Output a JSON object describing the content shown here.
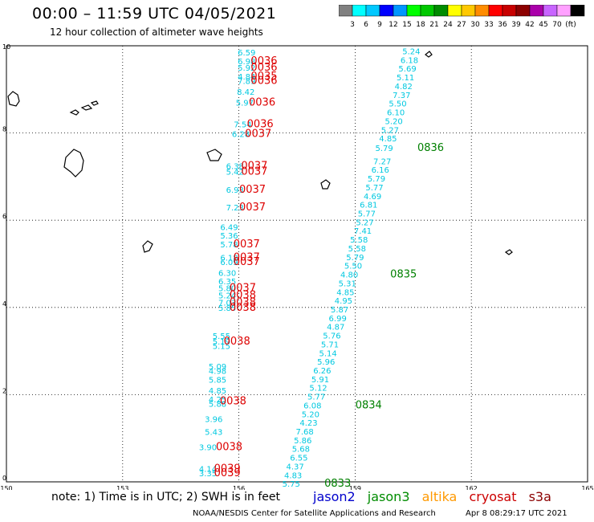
{
  "title": "00:00 – 11:59 UTC 04/05/2021",
  "subtitle": "12 hour collection of altimeter wave heights",
  "legend": {
    "colors": [
      "#808080",
      "#00ffff",
      "#00c8ff",
      "#0000ff",
      "#0096ff",
      "#00ff00",
      "#00c800",
      "#008c00",
      "#ffff00",
      "#ffc800",
      "#ff8c00",
      "#ff0000",
      "#c80000",
      "#8c0000",
      "#aa00aa",
      "#c864ff",
      "#ffa0ff",
      "#000000"
    ],
    "labels": [
      "3",
      "6",
      "9",
      "12",
      "15",
      "18",
      "21",
      "24",
      "27",
      "30",
      "33",
      "36",
      "39",
      "42",
      "45",
      "70",
      "(ft)"
    ]
  },
  "note": "note: 1) Time is in UTC; 2) SWH is in feet",
  "satellites": [
    {
      "name": "jason2",
      "color": "#0000cc"
    },
    {
      "name": "jason3",
      "color": "#008c00"
    },
    {
      "name": "altika",
      "color": "#ff9900"
    },
    {
      "name": "cryosat",
      "color": "#cc0000"
    },
    {
      "name": "s3a",
      "color": "#8b0000"
    }
  ],
  "credit": "NOAA/NESDIS Center for Satellite Applications and Research",
  "credit_time": "Apr  8 08:29:17 UTC 2021",
  "chart_data": {
    "type": "scatter",
    "xlim": [
      150,
      165
    ],
    "ylim": [
      0,
      10
    ],
    "x_ticks": [
      150,
      153,
      156,
      159,
      162,
      165
    ],
    "y_ticks": [
      0,
      2,
      4,
      6,
      8,
      10
    ],
    "grid": true,
    "wave_color": "#00c8e0",
    "time_color_cryosat": "#dd0000",
    "time_color_jason3": "#008000",
    "cryosat_values": [
      {
        "x": 156.2,
        "y": 9.85,
        "v": "6.59"
      },
      {
        "x": 156.2,
        "y": 9.65,
        "v": "6.98"
      },
      {
        "x": 156.2,
        "y": 9.5,
        "v": "5.92"
      },
      {
        "x": 156.2,
        "y": 9.3,
        "v": "4.84"
      },
      {
        "x": 156.2,
        "y": 9.2,
        "v": "7.89"
      },
      {
        "x": 156.18,
        "y": 8.95,
        "v": "8.42"
      },
      {
        "x": 156.15,
        "y": 8.7,
        "v": "5.97"
      },
      {
        "x": 156.1,
        "y": 8.2,
        "v": "7.54"
      },
      {
        "x": 156.05,
        "y": 7.98,
        "v": "6.28"
      },
      {
        "x": 155.9,
        "y": 7.25,
        "v": "6.38"
      },
      {
        "x": 155.9,
        "y": 7.12,
        "v": "5.42"
      },
      {
        "x": 155.9,
        "y": 6.7,
        "v": "6.93"
      },
      {
        "x": 155.9,
        "y": 6.3,
        "v": "7.23"
      },
      {
        "x": 155.75,
        "y": 5.85,
        "v": "6.49"
      },
      {
        "x": 155.75,
        "y": 5.65,
        "v": "5.36"
      },
      {
        "x": 155.75,
        "y": 5.45,
        "v": "5.78"
      },
      {
        "x": 155.75,
        "y": 5.15,
        "v": "6.18"
      },
      {
        "x": 155.75,
        "y": 5.05,
        "v": "6.09"
      },
      {
        "x": 155.7,
        "y": 4.8,
        "v": "6.30"
      },
      {
        "x": 155.7,
        "y": 4.6,
        "v": "6.35"
      },
      {
        "x": 155.7,
        "y": 4.45,
        "v": "5.80"
      },
      {
        "x": 155.7,
        "y": 4.28,
        "v": "5.24"
      },
      {
        "x": 155.7,
        "y": 4.12,
        "v": "7.03"
      },
      {
        "x": 155.7,
        "y": 4.0,
        "v": "5.85"
      },
      {
        "x": 155.55,
        "y": 3.35,
        "v": "5.55"
      },
      {
        "x": 155.55,
        "y": 3.22,
        "v": "5.19"
      },
      {
        "x": 155.55,
        "y": 3.12,
        "v": "5.15"
      },
      {
        "x": 155.45,
        "y": 2.65,
        "v": "5.09"
      },
      {
        "x": 155.45,
        "y": 2.55,
        "v": "4.98"
      },
      {
        "x": 155.45,
        "y": 2.35,
        "v": "5.85"
      },
      {
        "x": 155.45,
        "y": 2.1,
        "v": "4.85"
      },
      {
        "x": 155.45,
        "y": 1.9,
        "v": "4.25"
      },
      {
        "x": 155.45,
        "y": 1.8,
        "v": "5.88"
      },
      {
        "x": 155.35,
        "y": 1.45,
        "v": "3.96"
      },
      {
        "x": 155.35,
        "y": 1.15,
        "v": "5.43"
      },
      {
        "x": 155.2,
        "y": 0.8,
        "v": "3.90"
      },
      {
        "x": 155.2,
        "y": 0.3,
        "v": "4.14"
      },
      {
        "x": 155.2,
        "y": 0.2,
        "v": "3.35"
      }
    ],
    "cryosat_times": [
      {
        "x": 156.65,
        "y": 9.65,
        "v": "0036"
      },
      {
        "x": 156.65,
        "y": 9.5,
        "v": "0036"
      },
      {
        "x": 156.65,
        "y": 9.3,
        "v": "0035"
      },
      {
        "x": 156.65,
        "y": 9.2,
        "v": "0036"
      },
      {
        "x": 156.6,
        "y": 8.7,
        "v": "0036"
      },
      {
        "x": 156.55,
        "y": 8.2,
        "v": "0036"
      },
      {
        "x": 156.5,
        "y": 7.98,
        "v": "0037"
      },
      {
        "x": 156.4,
        "y": 7.25,
        "v": "0037"
      },
      {
        "x": 156.4,
        "y": 7.12,
        "v": "0037"
      },
      {
        "x": 156.35,
        "y": 6.7,
        "v": "0037"
      },
      {
        "x": 156.35,
        "y": 6.3,
        "v": "0037"
      },
      {
        "x": 156.2,
        "y": 5.45,
        "v": "0037"
      },
      {
        "x": 156.2,
        "y": 5.15,
        "v": "0037"
      },
      {
        "x": 156.2,
        "y": 5.05,
        "v": "0037"
      },
      {
        "x": 156.1,
        "y": 4.45,
        "v": "0037"
      },
      {
        "x": 156.1,
        "y": 4.28,
        "v": "0038"
      },
      {
        "x": 156.1,
        "y": 4.12,
        "v": "0038"
      },
      {
        "x": 156.1,
        "y": 4.0,
        "v": "0038"
      },
      {
        "x": 155.95,
        "y": 3.22,
        "v": "0038"
      },
      {
        "x": 155.85,
        "y": 1.85,
        "v": "0038"
      },
      {
        "x": 155.75,
        "y": 0.8,
        "v": "0038"
      },
      {
        "x": 155.7,
        "y": 0.3,
        "v": "0039"
      },
      {
        "x": 155.7,
        "y": 0.2,
        "v": "0039"
      }
    ],
    "jason3_values": [
      {
        "x": 160.45,
        "y": 9.88,
        "v": "5.24"
      },
      {
        "x": 160.4,
        "y": 9.68,
        "v": "6.18"
      },
      {
        "x": 160.35,
        "y": 9.48,
        "v": "5.69"
      },
      {
        "x": 160.3,
        "y": 9.28,
        "v": "5.11"
      },
      {
        "x": 160.25,
        "y": 9.08,
        "v": "4.82"
      },
      {
        "x": 160.2,
        "y": 8.88,
        "v": "7.37"
      },
      {
        "x": 160.1,
        "y": 8.68,
        "v": "5.50"
      },
      {
        "x": 160.05,
        "y": 8.48,
        "v": "6.10"
      },
      {
        "x": 160.0,
        "y": 8.28,
        "v": "5.20"
      },
      {
        "x": 159.9,
        "y": 8.08,
        "v": "5.27"
      },
      {
        "x": 159.85,
        "y": 7.88,
        "v": "4.85"
      },
      {
        "x": 159.75,
        "y": 7.66,
        "v": "5.79"
      },
      {
        "x": 159.7,
        "y": 7.36,
        "v": "7.27"
      },
      {
        "x": 159.65,
        "y": 7.16,
        "v": "6.16"
      },
      {
        "x": 159.55,
        "y": 6.96,
        "v": "5.79"
      },
      {
        "x": 159.5,
        "y": 6.76,
        "v": "5.77"
      },
      {
        "x": 159.45,
        "y": 6.56,
        "v": "4.69"
      },
      {
        "x": 159.35,
        "y": 6.36,
        "v": "6.81"
      },
      {
        "x": 159.3,
        "y": 6.16,
        "v": "5.77"
      },
      {
        "x": 159.25,
        "y": 5.96,
        "v": "5.27"
      },
      {
        "x": 159.2,
        "y": 5.76,
        "v": "7.41"
      },
      {
        "x": 159.1,
        "y": 5.56,
        "v": "5.58"
      },
      {
        "x": 159.05,
        "y": 5.36,
        "v": "5.58"
      },
      {
        "x": 159.0,
        "y": 5.16,
        "v": "5.79"
      },
      {
        "x": 158.95,
        "y": 4.96,
        "v": "5.50"
      },
      {
        "x": 158.85,
        "y": 4.76,
        "v": "4.80"
      },
      {
        "x": 158.8,
        "y": 4.56,
        "v": "5.31"
      },
      {
        "x": 158.75,
        "y": 4.36,
        "v": "4.85"
      },
      {
        "x": 158.7,
        "y": 4.16,
        "v": "4.95"
      },
      {
        "x": 158.6,
        "y": 3.96,
        "v": "5.87"
      },
      {
        "x": 158.55,
        "y": 3.76,
        "v": "6.99"
      },
      {
        "x": 158.5,
        "y": 3.56,
        "v": "4.87"
      },
      {
        "x": 158.4,
        "y": 3.36,
        "v": "5.76"
      },
      {
        "x": 158.35,
        "y": 3.16,
        "v": "5.71"
      },
      {
        "x": 158.3,
        "y": 2.96,
        "v": "5.14"
      },
      {
        "x": 158.25,
        "y": 2.76,
        "v": "5.96"
      },
      {
        "x": 158.15,
        "y": 2.56,
        "v": "6.26"
      },
      {
        "x": 158.1,
        "y": 2.36,
        "v": "5.91"
      },
      {
        "x": 158.05,
        "y": 2.16,
        "v": "5.12"
      },
      {
        "x": 158.0,
        "y": 1.96,
        "v": "5.77"
      },
      {
        "x": 157.9,
        "y": 1.76,
        "v": "6.08"
      },
      {
        "x": 157.85,
        "y": 1.56,
        "v": "5.20"
      },
      {
        "x": 157.8,
        "y": 1.36,
        "v": "4.23"
      },
      {
        "x": 157.7,
        "y": 1.16,
        "v": "7.68"
      },
      {
        "x": 157.65,
        "y": 0.96,
        "v": "5.86"
      },
      {
        "x": 157.6,
        "y": 0.76,
        "v": "5.68"
      },
      {
        "x": 157.55,
        "y": 0.56,
        "v": "6.55"
      },
      {
        "x": 157.45,
        "y": 0.36,
        "v": "4.37"
      },
      {
        "x": 157.4,
        "y": 0.16,
        "v": "4.83"
      },
      {
        "x": 157.35,
        "y": -0.04,
        "v": "5.75"
      }
    ],
    "jason3_times": [
      {
        "x": 160.95,
        "y": 7.66,
        "v": "0836"
      },
      {
        "x": 160.25,
        "y": 4.76,
        "v": "0835"
      },
      {
        "x": 159.35,
        "y": 1.76,
        "v": "0834"
      },
      {
        "x": 158.55,
        "y": -0.04,
        "v": "0833"
      }
    ]
  }
}
